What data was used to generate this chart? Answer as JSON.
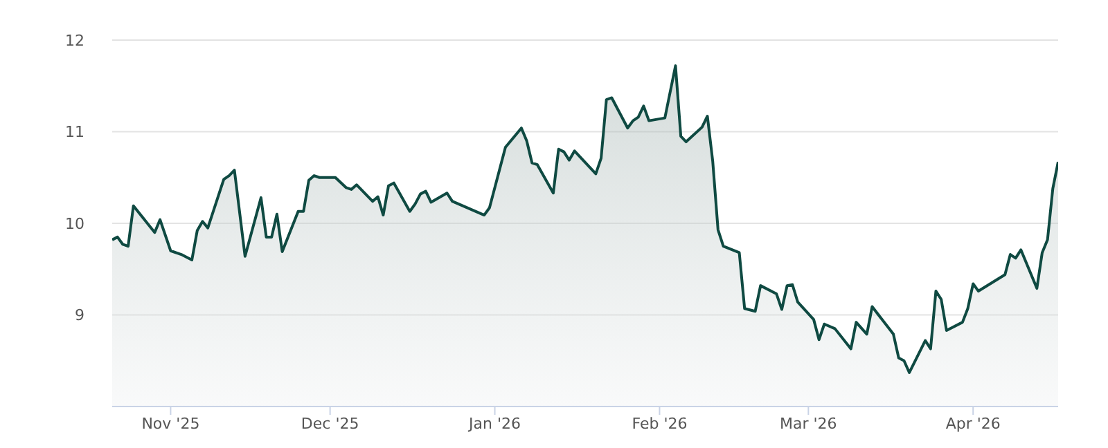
{
  "chart_data": {
    "type": "area",
    "color": "#0f4a42",
    "x": [
      "2025-10-21",
      "2025-10-22",
      "2025-10-23",
      "2025-10-24",
      "2025-10-25",
      "2025-10-29",
      "2025-10-30",
      "2025-11-01",
      "2025-11-03",
      "2025-11-05",
      "2025-11-06",
      "2025-11-07",
      "2025-11-08",
      "2025-11-11",
      "2025-11-12",
      "2025-11-13",
      "2025-11-15",
      "2025-11-18",
      "2025-11-19",
      "2025-11-20",
      "2025-11-21",
      "2025-11-22",
      "2025-11-25",
      "2025-11-26",
      "2025-11-27",
      "2025-11-28",
      "2025-11-29",
      "2025-12-02",
      "2025-12-04",
      "2025-12-05",
      "2025-12-06",
      "2025-12-09",
      "2025-12-10",
      "2025-12-11",
      "2025-12-12",
      "2025-12-13",
      "2025-12-16",
      "2025-12-17",
      "2025-12-18",
      "2025-12-19",
      "2025-12-20",
      "2025-12-23",
      "2025-12-24",
      "2025-12-30",
      "2025-12-31",
      "2026-01-03",
      "2026-01-06",
      "2026-01-07",
      "2026-01-08",
      "2026-01-09",
      "2026-01-12",
      "2026-01-13",
      "2026-01-14",
      "2026-01-15",
      "2026-01-16",
      "2026-01-20",
      "2026-01-21",
      "2026-01-22",
      "2026-01-23",
      "2026-01-26",
      "2026-01-27",
      "2026-01-28",
      "2026-01-29",
      "2026-01-30",
      "2026-02-02",
      "2026-02-04",
      "2026-02-05",
      "2026-02-06",
      "2026-02-09",
      "2026-02-10",
      "2026-02-11",
      "2026-02-12",
      "2026-02-13",
      "2026-02-16",
      "2026-02-17",
      "2026-02-19",
      "2026-02-20",
      "2026-02-23",
      "2026-02-24",
      "2026-02-25",
      "2026-02-26",
      "2026-02-27",
      "2026-03-02",
      "2026-03-03",
      "2026-03-04",
      "2026-03-06",
      "2026-03-09",
      "2026-03-10",
      "2026-03-12",
      "2026-03-13",
      "2026-03-17",
      "2026-03-18",
      "2026-03-19",
      "2026-03-20",
      "2026-03-23",
      "2026-03-24",
      "2026-03-25",
      "2026-03-26",
      "2026-03-27",
      "2026-03-30",
      "2026-03-31",
      "2026-04-01",
      "2026-04-02",
      "2026-04-07",
      "2026-04-08",
      "2026-04-09",
      "2026-04-10",
      "2026-04-13",
      "2026-04-14",
      "2026-04-15",
      "2026-04-16",
      "2026-04-17"
    ],
    "values": [
      9.82,
      9.85,
      9.77,
      9.75,
      10.19,
      9.9,
      10.04,
      9.7,
      9.66,
      9.6,
      9.92,
      10.02,
      9.95,
      10.48,
      10.52,
      10.58,
      9.64,
      10.28,
      9.85,
      9.85,
      10.1,
      9.69,
      10.13,
      10.13,
      10.47,
      10.52,
      10.5,
      10.5,
      10.39,
      10.37,
      10.42,
      10.24,
      10.29,
      10.09,
      10.41,
      10.44,
      10.13,
      10.21,
      10.32,
      10.35,
      10.23,
      10.33,
      10.24,
      10.09,
      10.17,
      10.83,
      11.04,
      10.9,
      10.66,
      10.64,
      10.33,
      10.81,
      10.78,
      10.69,
      10.79,
      10.54,
      10.71,
      11.35,
      11.37,
      11.04,
      11.12,
      11.16,
      11.28,
      11.12,
      11.15,
      11.72,
      10.95,
      10.89,
      11.05,
      11.17,
      10.68,
      9.93,
      9.75,
      9.68,
      9.07,
      9.04,
      9.32,
      9.23,
      9.06,
      9.32,
      9.33,
      9.14,
      8.95,
      8.73,
      8.9,
      8.85,
      8.63,
      8.92,
      8.79,
      9.09,
      8.79,
      8.53,
      8.5,
      8.37,
      8.72,
      8.63,
      9.26,
      9.17,
      8.83,
      8.92,
      9.07,
      9.34,
      9.26,
      9.44,
      9.66,
      9.62,
      9.71,
      9.29,
      9.68,
      9.82,
      10.38,
      10.67
    ],
    "xlim": [
      "2025-10-21",
      "2026-04-17"
    ],
    "xticks": [
      {
        "value": "2025-11-01",
        "label": "Nov '25"
      },
      {
        "value": "2025-12-01",
        "label": "Dec '25"
      },
      {
        "value": "2026-01-01",
        "label": "Jan '26"
      },
      {
        "value": "2026-02-01",
        "label": "Feb '26"
      },
      {
        "value": "2026-03-01",
        "label": "Mar '26"
      },
      {
        "value": "2026-04-01",
        "label": "Apr '26"
      }
    ],
    "ylim": [
      8,
      12
    ],
    "yticks": [
      9,
      10,
      11,
      12
    ],
    "grid": "y"
  }
}
